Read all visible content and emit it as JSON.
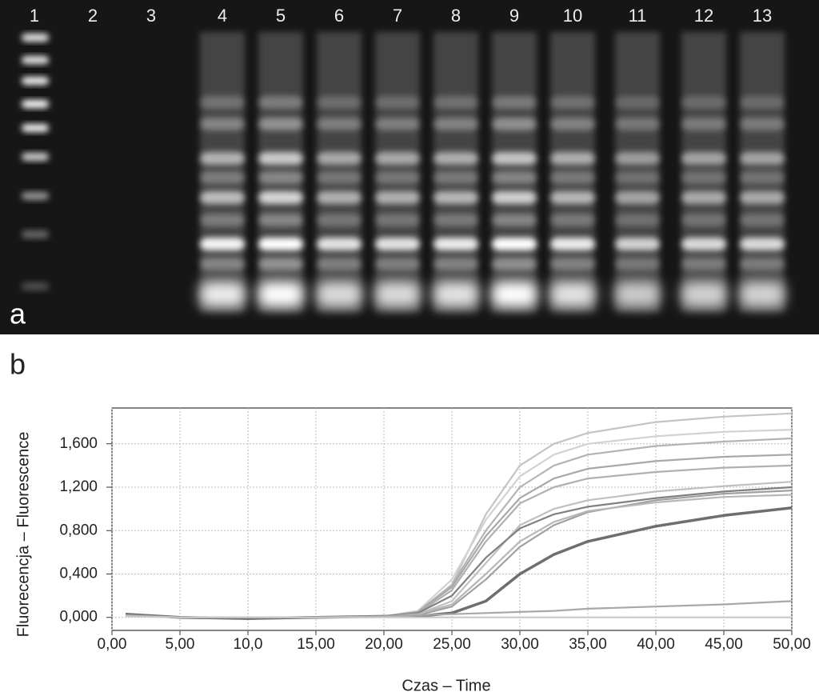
{
  "gel": {
    "lane_labels": [
      "1",
      "2",
      "3",
      "4",
      "5",
      "6",
      "7",
      "8",
      "9",
      "10",
      "11",
      "12",
      "13"
    ],
    "panel_label": "a"
  },
  "panel_b_label": "b",
  "chart_data": {
    "type": "line",
    "x_label": "Czas – Time",
    "y_label": "Fluorecencja – Fluorescence",
    "x": [
      1,
      5,
      10,
      15,
      20,
      22.5,
      25,
      27.5,
      30,
      32.5,
      35,
      40,
      45,
      50
    ],
    "series": [
      {
        "color": "#c4c4c4",
        "values": [
          0.02,
          0,
          0,
          0,
          0.01,
          0.05,
          0.3,
          0.95,
          1.4,
          1.6,
          1.7,
          1.8,
          1.85,
          1.88
        ]
      },
      {
        "color": "#d2d2d2",
        "values": [
          0.02,
          0,
          0,
          0,
          0.01,
          0.06,
          0.35,
          0.9,
          1.3,
          1.5,
          1.6,
          1.67,
          1.71,
          1.73
        ]
      },
      {
        "color": "#b4b4b4",
        "values": [
          0.02,
          0,
          0,
          0,
          0.01,
          0.05,
          0.3,
          0.8,
          1.2,
          1.4,
          1.5,
          1.58,
          1.62,
          1.65
        ]
      },
      {
        "color": "#a8a8a8",
        "values": [
          0.02,
          0,
          0,
          0,
          0.01,
          0.05,
          0.28,
          0.75,
          1.1,
          1.28,
          1.37,
          1.44,
          1.48,
          1.5
        ]
      },
      {
        "color": "#b0b0b0",
        "values": [
          0.02,
          0,
          0,
          0,
          0.01,
          0.04,
          0.25,
          0.7,
          1.05,
          1.2,
          1.28,
          1.34,
          1.38,
          1.4
        ]
      },
      {
        "color": "#c0c0c0",
        "values": [
          0.02,
          0,
          0,
          0,
          0.01,
          0.03,
          0.15,
          0.5,
          0.85,
          1.0,
          1.08,
          1.16,
          1.21,
          1.25
        ]
      },
      {
        "color": "#808080",
        "values": [
          0.03,
          0,
          0,
          0,
          0.01,
          0.04,
          0.2,
          0.55,
          0.82,
          0.95,
          1.02,
          1.1,
          1.16,
          1.2
        ]
      },
      {
        "color": "#a0a0a0",
        "values": [
          0.02,
          0,
          0,
          0,
          0.01,
          0.02,
          0.1,
          0.35,
          0.65,
          0.85,
          0.97,
          1.08,
          1.14,
          1.17
        ]
      },
      {
        "color": "#b8b8b8",
        "values": [
          0.02,
          0,
          0,
          0,
          0.01,
          0.03,
          0.12,
          0.4,
          0.7,
          0.88,
          0.98,
          1.06,
          1.11,
          1.13
        ]
      },
      {
        "color": "#6e6e6e",
        "values": [
          0.03,
          0,
          -0.01,
          0,
          0.01,
          0.01,
          0.04,
          0.15,
          0.4,
          0.58,
          0.7,
          0.84,
          0.94,
          1.01
        ]
      },
      {
        "color": "#a8a8a8",
        "values": [
          0.02,
          0,
          0,
          0,
          0.01,
          0.02,
          0.03,
          0.04,
          0.05,
          0.06,
          0.08,
          0.1,
          0.12,
          0.15
        ]
      },
      {
        "color": "#c8c8c8",
        "values": [
          0.01,
          0,
          0,
          0,
          0,
          0,
          0,
          0,
          0,
          0,
          0,
          0,
          0,
          0
        ]
      }
    ],
    "xlim": [
      0,
      50
    ],
    "ylim": [
      -0.12,
      1.93
    ],
    "xticks": [
      {
        "value": 0,
        "label": "0,00"
      },
      {
        "value": 5,
        "label": "5,00"
      },
      {
        "value": 10,
        "label": "10,0"
      },
      {
        "value": 15,
        "label": "15,00"
      },
      {
        "value": 20,
        "label": "20,00"
      },
      {
        "value": 25,
        "label": "25,00"
      },
      {
        "value": 30,
        "label": "30,00"
      },
      {
        "value": 35,
        "label": "35,00"
      },
      {
        "value": 40,
        "label": "40,00"
      },
      {
        "value": 45,
        "label": "45,00"
      },
      {
        "value": 50,
        "label": "50,00"
      }
    ],
    "yticks": [
      {
        "value": 0,
        "label": "0,000"
      },
      {
        "value": 0.4,
        "label": "0,400"
      },
      {
        "value": 0.8,
        "label": "0,800"
      },
      {
        "value": 1.2,
        "label": "1,200"
      },
      {
        "value": 1.6,
        "label": "1,600"
      }
    ],
    "grid": true
  }
}
